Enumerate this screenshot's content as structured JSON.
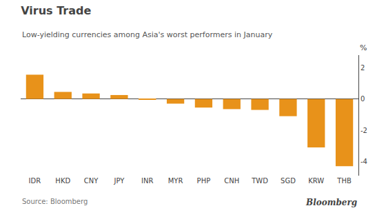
{
  "chart_data": {
    "type": "bar",
    "title": "Virus Trade",
    "subtitle": "Low-yielding currencies among Asia's worst performers in January",
    "ylabel": "%",
    "annotations": [
      "Source: Bloomberg",
      "Bloomberg"
    ],
    "categories": [
      "IDR",
      "HKD",
      "CNY",
      "JPY",
      "INR",
      "MYR",
      "PHP",
      "CNH",
      "TWD",
      "SGD",
      "KRW",
      "THB"
    ],
    "values": [
      1.55,
      0.45,
      0.35,
      0.25,
      -0.05,
      -0.3,
      -0.55,
      -0.65,
      -0.7,
      -1.1,
      -3.1,
      -4.3
    ],
    "color": "#E8921A",
    "ylim": [
      -4.9,
      2.8
    ],
    "yticks": [
      -4,
      -2,
      0,
      2
    ],
    "grid": false
  }
}
